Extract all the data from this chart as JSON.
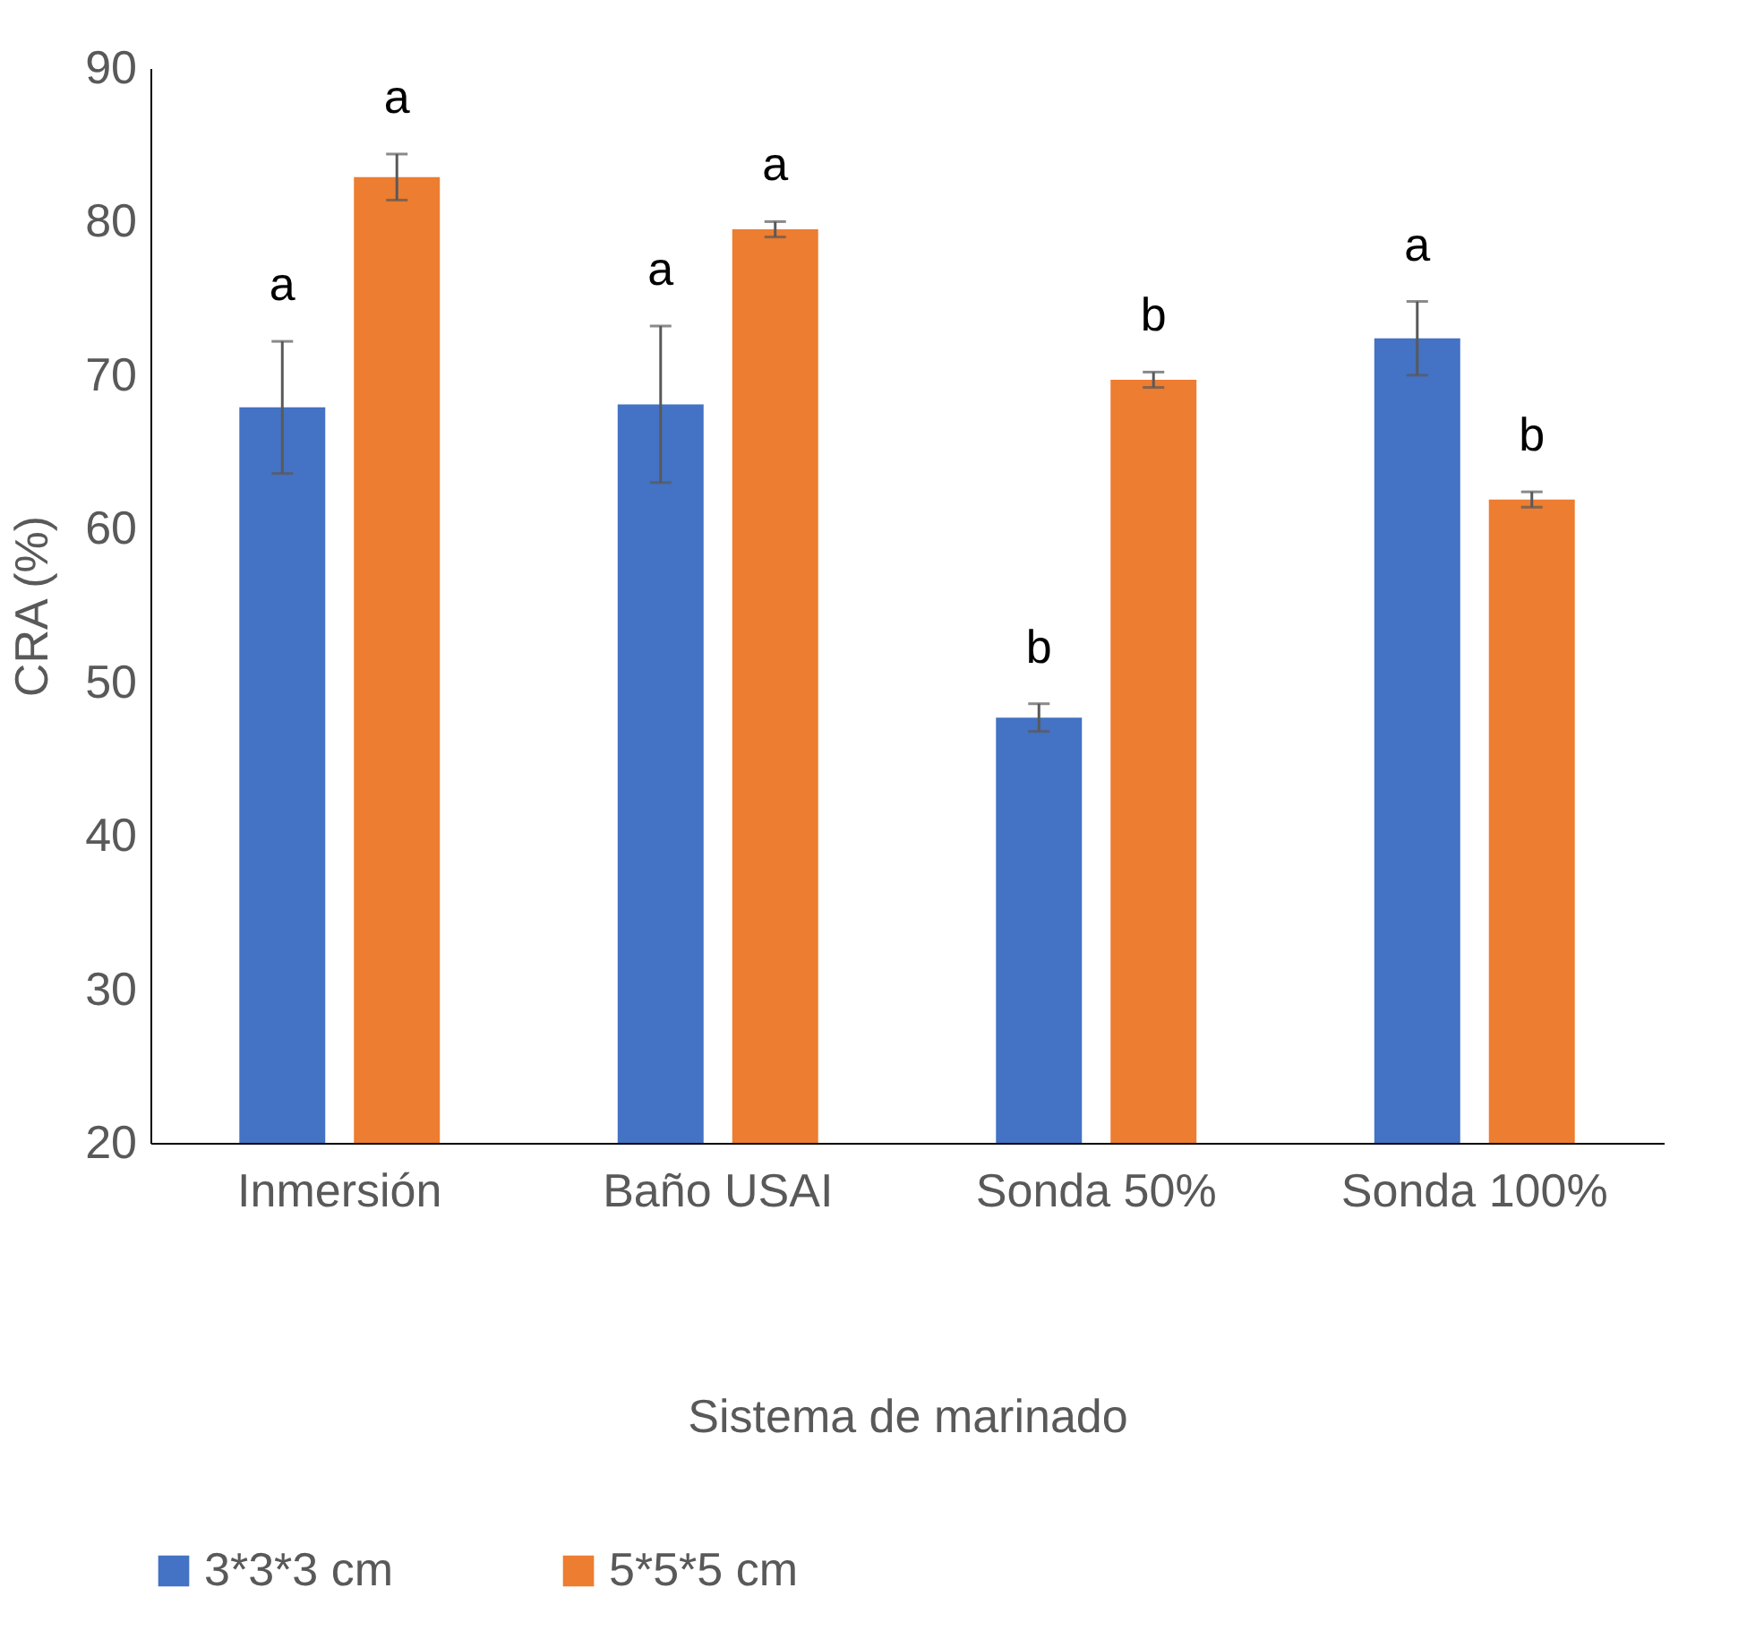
{
  "chart_data": {
    "type": "bar",
    "xlabel": "Sistema de marinado",
    "ylabel": "CRA (%)",
    "categories": [
      "Inmersión",
      "Baño USAI",
      "Sonda 50%",
      "Sonda 100%"
    ],
    "series": [
      {
        "name": "3*3*3 cm",
        "color": "#4472c4",
        "values": [
          67.9,
          68.1,
          47.7,
          72.4
        ],
        "errors": [
          4.3,
          5.1,
          0.9,
          2.4
        ],
        "value_labels": [
          "a",
          "a",
          "b",
          "a"
        ]
      },
      {
        "name": "5*5*5 cm",
        "color": "#ed7d31",
        "values": [
          82.9,
          79.5,
          69.7,
          61.9
        ],
        "errors": [
          1.5,
          0.5,
          0.5,
          0.5
        ],
        "value_labels": [
          "a",
          "a",
          "b",
          "b"
        ]
      }
    ],
    "ylim": [
      20,
      90
    ],
    "yticks": [
      20,
      30,
      40,
      50,
      60,
      70,
      80,
      90
    ],
    "grid": false,
    "legend": "bottom"
  }
}
